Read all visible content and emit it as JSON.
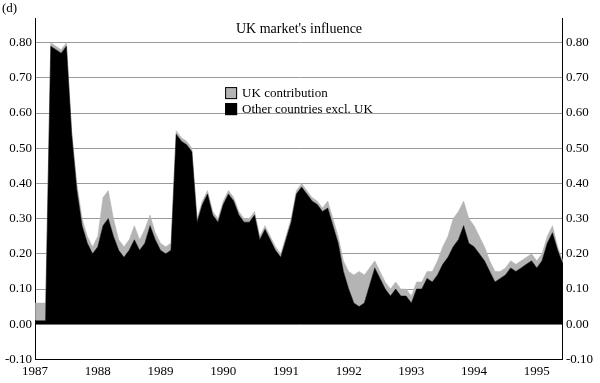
{
  "chart_data": {
    "type": "area",
    "title": "UK market's influence",
    "annotations": [
      "(d)"
    ],
    "stacked": true,
    "grid": true,
    "legend": "upper center",
    "categories": [
      "1987",
      null,
      null,
      null,
      null,
      null,
      null,
      null,
      null,
      null,
      null,
      null,
      "1988",
      null,
      null,
      null,
      null,
      null,
      null,
      null,
      null,
      null,
      null,
      null,
      "1989",
      null,
      null,
      null,
      null,
      null,
      null,
      null,
      null,
      null,
      null,
      null,
      "1990",
      null,
      null,
      null,
      null,
      null,
      null,
      null,
      null,
      null,
      null,
      null,
      "1991",
      null,
      null,
      null,
      null,
      null,
      null,
      null,
      null,
      null,
      null,
      null,
      "1992",
      null,
      null,
      null,
      null,
      null,
      null,
      null,
      null,
      null,
      null,
      null,
      "1993",
      null,
      null,
      null,
      null,
      null,
      null,
      null,
      null,
      null,
      null,
      null,
      "1994",
      null,
      null,
      null,
      null,
      null,
      null,
      null,
      null,
      null,
      null,
      null,
      "1995",
      null,
      null,
      null,
      null,
      null
    ],
    "series": [
      {
        "name": "Other countries excl. UK",
        "color": "#000000",
        "values": [
          0.01,
          0.01,
          0.01,
          0.79,
          0.78,
          0.77,
          0.79,
          0.54,
          0.38,
          0.28,
          0.23,
          0.2,
          0.22,
          0.28,
          0.3,
          0.25,
          0.21,
          0.19,
          0.21,
          0.24,
          0.21,
          0.23,
          0.28,
          0.24,
          0.21,
          0.2,
          0.21,
          0.54,
          0.52,
          0.51,
          0.49,
          0.29,
          0.34,
          0.37,
          0.31,
          0.29,
          0.34,
          0.37,
          0.35,
          0.31,
          0.29,
          0.29,
          0.31,
          0.24,
          0.27,
          0.24,
          0.21,
          0.19,
          0.24,
          0.29,
          0.37,
          0.39,
          0.37,
          0.35,
          0.34,
          0.32,
          0.33,
          0.28,
          0.23,
          0.15,
          0.1,
          0.06,
          0.05,
          0.06,
          0.11,
          0.16,
          0.13,
          0.1,
          0.08,
          0.1,
          0.08,
          0.08,
          0.06,
          0.1,
          0.1,
          0.13,
          0.12,
          0.14,
          0.17,
          0.19,
          0.22,
          0.24,
          0.28,
          0.23,
          0.22,
          0.2,
          0.18,
          0.15,
          0.12,
          0.13,
          0.14,
          0.16,
          0.15,
          0.16,
          0.17,
          0.18,
          0.16,
          0.18,
          0.23,
          0.26,
          0.21,
          0.17
        ]
      },
      {
        "name": "UK contribution",
        "color": "#b4b4b4",
        "values": [
          0.05,
          0.05,
          0.05,
          0.01,
          0.01,
          0.01,
          0.01,
          0.01,
          0.02,
          0.02,
          0.02,
          0.02,
          0.03,
          0.08,
          0.08,
          0.05,
          0.03,
          0.03,
          0.03,
          0.04,
          0.03,
          0.04,
          0.03,
          0.02,
          0.02,
          0.02,
          0.02,
          0.01,
          0.01,
          0.01,
          0.01,
          0.01,
          0.01,
          0.01,
          0.01,
          0.01,
          0.01,
          0.01,
          0.01,
          0.01,
          0.01,
          0.01,
          0.01,
          0.01,
          0.01,
          0.01,
          0.01,
          0.01,
          0.01,
          0.01,
          0.01,
          0.01,
          0.01,
          0.01,
          0.01,
          0.01,
          0.02,
          0.02,
          0.02,
          0.03,
          0.05,
          0.08,
          0.1,
          0.08,
          0.05,
          0.02,
          0.02,
          0.02,
          0.02,
          0.02,
          0.02,
          0.02,
          0.02,
          0.02,
          0.02,
          0.02,
          0.03,
          0.04,
          0.05,
          0.06,
          0.08,
          0.08,
          0.07,
          0.07,
          0.06,
          0.05,
          0.04,
          0.03,
          0.03,
          0.02,
          0.02,
          0.02,
          0.02,
          0.02,
          0.02,
          0.02,
          0.02,
          0.02,
          0.02,
          0.02,
          0.01,
          0.01
        ]
      }
    ],
    "ylim": [
      -0.1,
      0.87
    ],
    "yticks": [
      {
        "value": -0.1,
        "label": "-0.10"
      },
      {
        "value": 0,
        "label": "0.00"
      },
      {
        "value": 0.1,
        "label": "0.10"
      },
      {
        "value": 0.2,
        "label": "0.20"
      },
      {
        "value": 0.3,
        "label": "0.30"
      },
      {
        "value": 0.4,
        "label": "0.40"
      },
      {
        "value": 0.5,
        "label": "0.50"
      },
      {
        "value": 0.6,
        "label": "0.60"
      },
      {
        "value": 0.7,
        "label": "0.70"
      },
      {
        "value": 0.8,
        "label": "0.80"
      }
    ]
  }
}
